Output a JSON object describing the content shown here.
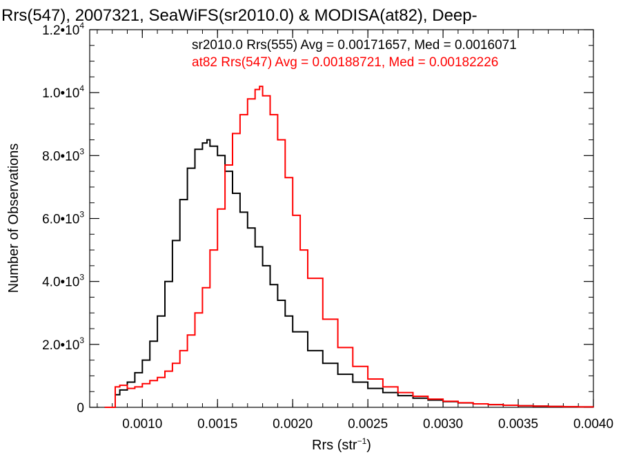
{
  "chart_data": {
    "type": "line",
    "title": "Rrs(547), 2007321, SeaWiFS(sr2010.0) & MODISA(at82), Deep-",
    "xlabel": "Rrs (str",
    "xlabel_sup": "−1",
    "xlabel_end": ")",
    "ylabel": "Number of Observations",
    "xlim": [
      0.00065,
      0.004
    ],
    "ylim": [
      0,
      12000
    ],
    "x_ticks": [
      {
        "value": 0.001,
        "label": "0.0010"
      },
      {
        "value": 0.0015,
        "label": "0.0015"
      },
      {
        "value": 0.002,
        "label": "0.0020"
      },
      {
        "value": 0.0025,
        "label": "0.0025"
      },
      {
        "value": 0.003,
        "label": "0.0030"
      },
      {
        "value": 0.0035,
        "label": "0.0035"
      },
      {
        "value": 0.004,
        "label": "0.0040"
      }
    ],
    "y_ticks": [
      {
        "value": 0,
        "mant": "0",
        "exp": ""
      },
      {
        "value": 2000,
        "mant": "2.0•10",
        "exp": "3"
      },
      {
        "value": 4000,
        "mant": "4.0•10",
        "exp": "3"
      },
      {
        "value": 6000,
        "mant": "6.0•10",
        "exp": "3"
      },
      {
        "value": 8000,
        "mant": "8.0•10",
        "exp": "3"
      },
      {
        "value": 10000,
        "mant": "1.0•10",
        "exp": "4"
      },
      {
        "value": 12000,
        "mant": "1.2•10",
        "exp": "4"
      }
    ],
    "series": [
      {
        "name": "sr2010.0 Rrs(555) Avg = 0.00171657, Med = 0.0016071",
        "color": "#000000",
        "x": [
          0.00075,
          0.0008,
          0.00082,
          0.00085,
          0.0009,
          0.00095,
          0.001,
          0.00105,
          0.0011,
          0.00115,
          0.0012,
          0.00125,
          0.0013,
          0.00135,
          0.0014,
          0.00143,
          0.00145,
          0.0015,
          0.00155,
          0.0016,
          0.00165,
          0.0017,
          0.00175,
          0.0018,
          0.00185,
          0.0019,
          0.00195,
          0.002,
          0.0021,
          0.0022,
          0.0023,
          0.0024,
          0.0025,
          0.0026,
          0.0027,
          0.0028,
          0.0029,
          0.003,
          0.0031,
          0.0032,
          0.0033,
          0.0034,
          0.0035,
          0.0036,
          0.0037,
          0.0038,
          0.0039,
          0.004
        ],
        "y": [
          0,
          0,
          400,
          550,
          800,
          1100,
          1500,
          2100,
          2900,
          4000,
          5300,
          6600,
          7600,
          8200,
          8400,
          8500,
          8300,
          8000,
          7500,
          6800,
          6200,
          5700,
          5100,
          4500,
          3900,
          3400,
          2900,
          2400,
          1800,
          1400,
          1050,
          800,
          600,
          470,
          370,
          290,
          230,
          180,
          140,
          110,
          85,
          65,
          50,
          38,
          28,
          20,
          14,
          10
        ]
      },
      {
        "name": "at82 Rrs(547) Avg = 0.00188721, Med = 0.00182226",
        "color": "#ff0000",
        "x": [
          0.00075,
          0.0008,
          0.00082,
          0.00085,
          0.0009,
          0.00095,
          0.001,
          0.00105,
          0.0011,
          0.00115,
          0.0012,
          0.00125,
          0.0013,
          0.00135,
          0.0014,
          0.00145,
          0.0015,
          0.00155,
          0.0016,
          0.00165,
          0.0017,
          0.00175,
          0.00178,
          0.0018,
          0.00185,
          0.0019,
          0.00195,
          0.002,
          0.00205,
          0.0021,
          0.0022,
          0.0023,
          0.0024,
          0.0025,
          0.0026,
          0.0027,
          0.0028,
          0.0029,
          0.003,
          0.0031,
          0.0032,
          0.0033,
          0.0034,
          0.0035,
          0.0036,
          0.0037,
          0.0038,
          0.0039,
          0.004
        ],
        "y": [
          0,
          0,
          650,
          700,
          600,
          650,
          750,
          850,
          950,
          1150,
          1400,
          1800,
          2300,
          3000,
          3800,
          5000,
          6300,
          7700,
          8700,
          9300,
          9800,
          10100,
          10200,
          9900,
          9300,
          8500,
          7300,
          6100,
          5000,
          4100,
          2800,
          1900,
          1300,
          900,
          650,
          470,
          350,
          260,
          190,
          145,
          110,
          85,
          65,
          50,
          38,
          28,
          20,
          13,
          8
        ]
      }
    ],
    "legend": "top-right",
    "grid": false
  }
}
